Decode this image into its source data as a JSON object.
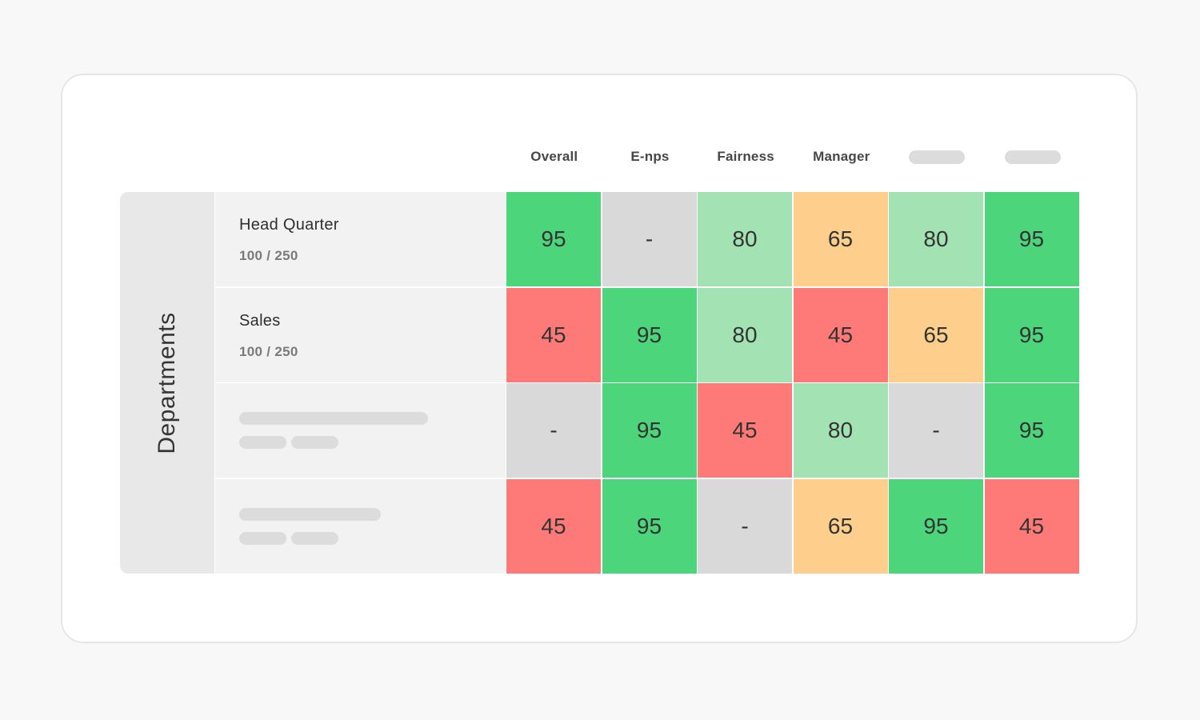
{
  "colors": {
    "high": "#4cd57b",
    "medium_high": "#a3e2b2",
    "medium": "#fecf8c",
    "low": "#fe7a78",
    "none": "#d9d9d9"
  },
  "columns": [
    {
      "label": "Overall",
      "placeholder": false
    },
    {
      "label": "E-nps",
      "placeholder": false
    },
    {
      "label": "Fairness",
      "placeholder": false
    },
    {
      "label": "Manager",
      "placeholder": false
    },
    {
      "label": "",
      "placeholder": true
    },
    {
      "label": "",
      "placeholder": true
    }
  ],
  "sidebar": {
    "label": "Departments"
  },
  "rows": [
    {
      "name": "Head Quarter",
      "count": "100 / 250",
      "placeholder": false,
      "cells": [
        {
          "value": "95",
          "level": "high"
        },
        {
          "value": "-",
          "level": "none"
        },
        {
          "value": "80",
          "level": "medium_high"
        },
        {
          "value": "65",
          "level": "medium"
        },
        {
          "value": "80",
          "level": "medium_high"
        },
        {
          "value": "95",
          "level": "high"
        }
      ]
    },
    {
      "name": "Sales",
      "count": "100 / 250",
      "placeholder": false,
      "cells": [
        {
          "value": "45",
          "level": "low"
        },
        {
          "value": "95",
          "level": "high"
        },
        {
          "value": "80",
          "level": "medium_high"
        },
        {
          "value": "45",
          "level": "low"
        },
        {
          "value": "65",
          "level": "medium"
        },
        {
          "value": "95",
          "level": "high"
        }
      ]
    },
    {
      "name": "",
      "count": "",
      "placeholder": true,
      "cells": [
        {
          "value": "-",
          "level": "none"
        },
        {
          "value": "95",
          "level": "high"
        },
        {
          "value": "45",
          "level": "low"
        },
        {
          "value": "80",
          "level": "medium_high"
        },
        {
          "value": "-",
          "level": "none"
        },
        {
          "value": "95",
          "level": "high"
        }
      ]
    },
    {
      "name": "",
      "count": "",
      "placeholder": true,
      "cells": [
        {
          "value": "45",
          "level": "low"
        },
        {
          "value": "95",
          "level": "high"
        },
        {
          "value": "-",
          "level": "none"
        },
        {
          "value": "65",
          "level": "medium"
        },
        {
          "value": "95",
          "level": "high"
        },
        {
          "value": "45",
          "level": "low"
        }
      ]
    }
  ]
}
